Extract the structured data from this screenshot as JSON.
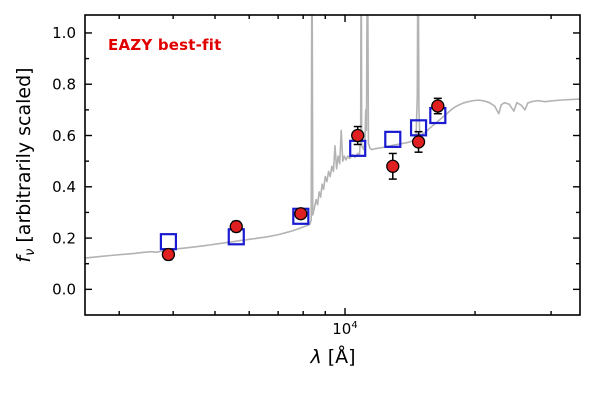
{
  "chart_data": {
    "type": "line",
    "title": "",
    "annotation": {
      "text": "EAZY best-fit",
      "color": "#e00000"
    },
    "xlabel": {
      "sym": "λ",
      "rest": " [Å]"
    },
    "ylabel": {
      "sym": "f",
      "sub": "ν",
      "rest": " [arbitrarily scaled]"
    },
    "x_scale": "log",
    "xlim": [
      2500,
      35000
    ],
    "ylim": [
      -0.1,
      1.07
    ],
    "yticks": [
      0.0,
      0.2,
      0.4,
      0.6,
      0.8,
      1.0
    ],
    "ytick_labels": [
      "0.0",
      "0.2",
      "0.4",
      "0.6",
      "0.8",
      "1.0"
    ],
    "yticks_minor": [
      -0.1,
      0.1,
      0.3,
      0.5,
      0.7,
      0.9
    ],
    "xticks_major": [
      10000
    ],
    "xtick_major_label": {
      "base": "10",
      "exp": "4"
    },
    "xticks_minor": [
      3000,
      4000,
      5000,
      6000,
      7000,
      8000,
      9000,
      20000,
      30000
    ],
    "grid": false,
    "legend": "none",
    "frame_color": "#000000",
    "series": [
      {
        "name": "model-spectrum",
        "type": "line",
        "color": "#b3b3b3",
        "linewidth": 1.6,
        "points": [
          [
            2500,
            0.122
          ],
          [
            2700,
            0.128
          ],
          [
            2900,
            0.133
          ],
          [
            3100,
            0.137
          ],
          [
            3250,
            0.14
          ],
          [
            3400,
            0.144
          ],
          [
            3550,
            0.147
          ],
          [
            3650,
            0.145
          ],
          [
            3800,
            0.15
          ],
          [
            3950,
            0.154
          ],
          [
            4100,
            0.158
          ],
          [
            4250,
            0.161
          ],
          [
            4400,
            0.164
          ],
          [
            4550,
            0.167
          ],
          [
            4700,
            0.17
          ],
          [
            4850,
            0.173
          ],
          [
            5000,
            0.176
          ],
          [
            5150,
            0.179
          ],
          [
            5300,
            0.182
          ],
          [
            5450,
            0.185
          ],
          [
            5600,
            0.188
          ],
          [
            5750,
            0.191
          ],
          [
            5900,
            0.193
          ],
          [
            6050,
            0.196
          ],
          [
            6200,
            0.198
          ],
          [
            6350,
            0.201
          ],
          [
            6500,
            0.203
          ],
          [
            6650,
            0.206
          ],
          [
            6800,
            0.209
          ],
          [
            6950,
            0.212
          ],
          [
            7100,
            0.216
          ],
          [
            7250,
            0.22
          ],
          [
            7400,
            0.224
          ],
          [
            7550,
            0.228
          ],
          [
            7700,
            0.233
          ],
          [
            7850,
            0.238
          ],
          [
            8000,
            0.243
          ],
          [
            8150,
            0.248
          ],
          [
            8280,
            0.253
          ],
          [
            8350,
            0.27
          ],
          [
            8385,
            1.45
          ],
          [
            8420,
            0.29
          ],
          [
            8500,
            0.32
          ],
          [
            8570,
            0.35
          ],
          [
            8640,
            0.33
          ],
          [
            8710,
            0.38
          ],
          [
            8780,
            0.36
          ],
          [
            8850,
            0.41
          ],
          [
            8920,
            0.39
          ],
          [
            9000,
            0.44
          ],
          [
            9080,
            0.42
          ],
          [
            9160,
            0.46
          ],
          [
            9240,
            0.44
          ],
          [
            9320,
            0.48
          ],
          [
            9400,
            0.46
          ],
          [
            9480,
            0.56
          ],
          [
            9560,
            0.47
          ],
          [
            9640,
            0.52
          ],
          [
            9720,
            0.49
          ],
          [
            9800,
            0.62
          ],
          [
            9880,
            0.5
          ],
          [
            9960,
            0.52
          ],
          [
            10050,
            0.505
          ],
          [
            10150,
            0.52
          ],
          [
            10250,
            0.51
          ],
          [
            10400,
            0.525
          ],
          [
            10550,
            0.515
          ],
          [
            10700,
            0.53
          ],
          [
            10800,
            0.525
          ],
          [
            10870,
            0.6
          ],
          [
            10900,
            1.45
          ],
          [
            10930,
            0.56
          ],
          [
            11050,
            0.545
          ],
          [
            11120,
            0.58
          ],
          [
            11165,
            0.7
          ],
          [
            11210,
            0.62
          ],
          [
            11270,
            1.45
          ],
          [
            11330,
            0.57
          ],
          [
            11420,
            0.55
          ],
          [
            11550,
            0.545
          ],
          [
            11700,
            0.548
          ],
          [
            11900,
            0.55
          ],
          [
            12100,
            0.552
          ],
          [
            12350,
            0.555
          ],
          [
            12600,
            0.558
          ],
          [
            12900,
            0.562
          ],
          [
            13200,
            0.565
          ],
          [
            13500,
            0.568
          ],
          [
            13900,
            0.572
          ],
          [
            14300,
            0.578
          ],
          [
            14600,
            0.59
          ],
          [
            14700,
            0.75
          ],
          [
            14760,
            1.45
          ],
          [
            14830,
            0.7
          ],
          [
            14900,
            0.6
          ],
          [
            15100,
            0.605
          ],
          [
            15400,
            0.615
          ],
          [
            15700,
            0.628
          ],
          [
            16000,
            0.64
          ],
          [
            16400,
            0.655
          ],
          [
            16800,
            0.67
          ],
          [
            17200,
            0.685
          ],
          [
            17600,
            0.7
          ],
          [
            18000,
            0.712
          ],
          [
            18400,
            0.72
          ],
          [
            18800,
            0.727
          ],
          [
            19300,
            0.732
          ],
          [
            19800,
            0.736
          ],
          [
            20400,
            0.738
          ],
          [
            21000,
            0.735
          ],
          [
            21600,
            0.728
          ],
          [
            22200,
            0.715
          ],
          [
            22700,
            0.685
          ],
          [
            23000,
            0.72
          ],
          [
            23400,
            0.728
          ],
          [
            24000,
            0.722
          ],
          [
            24600,
            0.695
          ],
          [
            25000,
            0.728
          ],
          [
            25600,
            0.718
          ],
          [
            26100,
            0.7
          ],
          [
            26500,
            0.727
          ],
          [
            27200,
            0.733
          ],
          [
            28000,
            0.736
          ],
          [
            29000,
            0.732
          ],
          [
            30000,
            0.735
          ],
          [
            31500,
            0.738
          ],
          [
            33000,
            0.74
          ],
          [
            35000,
            0.742
          ]
        ]
      },
      {
        "name": "model-photometry",
        "type": "scatter",
        "marker": "square",
        "color": "#1a1ad2",
        "marker_size": 15,
        "x": [
          3900,
          5600,
          7900,
          10700,
          12900,
          14800,
          16400
        ],
        "y": [
          0.186,
          0.205,
          0.285,
          0.55,
          0.585,
          0.63,
          0.678
        ]
      },
      {
        "name": "observed-photometry",
        "type": "scatter",
        "marker": "circle",
        "color": "#e02020",
        "edge_color": "#000000",
        "marker_size": 12,
        "x": [
          3900,
          5600,
          7900,
          10700,
          12900,
          14800,
          16400
        ],
        "y": [
          0.136,
          0.245,
          0.295,
          0.6,
          0.48,
          0.575,
          0.715
        ],
        "yerr": [
          0.02,
          0.02,
          0.018,
          0.035,
          0.05,
          0.04,
          0.03
        ]
      }
    ]
  }
}
